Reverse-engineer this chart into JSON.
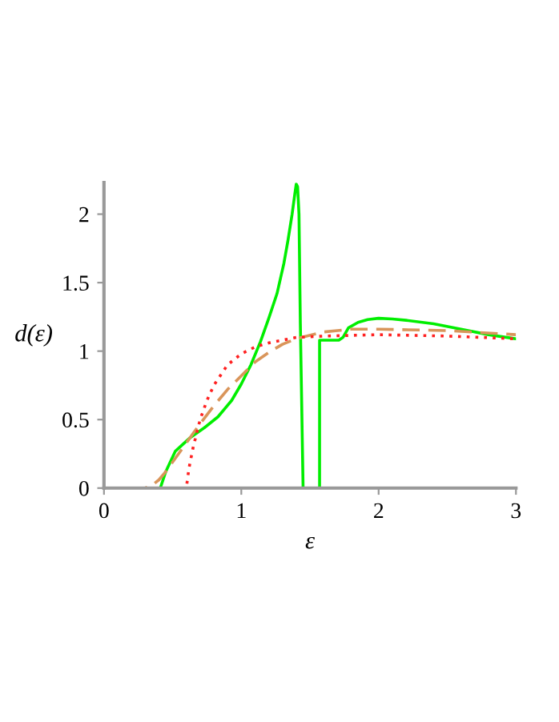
{
  "chart_data": {
    "type": "line",
    "xlabel": "ε",
    "ylabel": "d(ε)",
    "xlim": [
      0,
      3
    ],
    "ylim": [
      0,
      2.23
    ],
    "xticks": [
      0,
      1,
      2,
      3
    ],
    "yticks": [
      0,
      0.5,
      1,
      1.5,
      2
    ],
    "grid": false,
    "legend": false,
    "series": [
      {
        "color": "#00ee00",
        "line_style": "solid",
        "x": [
          0,
          0.41,
          0.45,
          0.52,
          0.63,
          0.73,
          0.83,
          0.93,
          1.0,
          1.07,
          1.14,
          1.2,
          1.26,
          1.31,
          1.34,
          1.37,
          1.39,
          1.4,
          1.41,
          1.42,
          1.43,
          1.45,
          1.57,
          1.57,
          1.71,
          1.74,
          1.78,
          1.85,
          1.92,
          2.0,
          2.1,
          2.2,
          2.4,
          2.6,
          2.8,
          3.0
        ],
        "values": [
          0,
          0,
          0.12,
          0.27,
          0.37,
          0.44,
          0.52,
          0.64,
          0.76,
          0.9,
          1.07,
          1.24,
          1.42,
          1.64,
          1.81,
          2.0,
          2.15,
          2.22,
          2.2,
          2.0,
          1.2,
          0,
          0,
          1.08,
          1.08,
          1.1,
          1.17,
          1.21,
          1.23,
          1.24,
          1.235,
          1.225,
          1.2,
          1.16,
          1.12,
          1.09
        ]
      },
      {
        "color": "#d9955a",
        "line_style": "dashed",
        "x": [
          0,
          0.3,
          0.35,
          0.4,
          0.45,
          0.5,
          0.6,
          0.7,
          0.8,
          0.9,
          1.0,
          1.1,
          1.2,
          1.3,
          1.4,
          1.6,
          1.8,
          2.0,
          2.5,
          3.0
        ],
        "values": [
          0,
          0,
          0.02,
          0.06,
          0.12,
          0.19,
          0.33,
          0.47,
          0.6,
          0.72,
          0.82,
          0.92,
          0.99,
          1.05,
          1.09,
          1.14,
          1.16,
          1.16,
          1.15,
          1.12
        ]
      },
      {
        "color": "#ff2020",
        "line_style": "dotted",
        "x": [
          0,
          0.6,
          0.61,
          0.62,
          0.65,
          0.7,
          0.75,
          0.8,
          0.9,
          1.0,
          1.1,
          1.2,
          1.4,
          1.6,
          2.0,
          2.5,
          3.0
        ],
        "values": [
          0,
          0,
          0.08,
          0.15,
          0.3,
          0.5,
          0.64,
          0.75,
          0.9,
          0.98,
          1.03,
          1.06,
          1.1,
          1.11,
          1.12,
          1.11,
          1.09
        ]
      }
    ]
  }
}
